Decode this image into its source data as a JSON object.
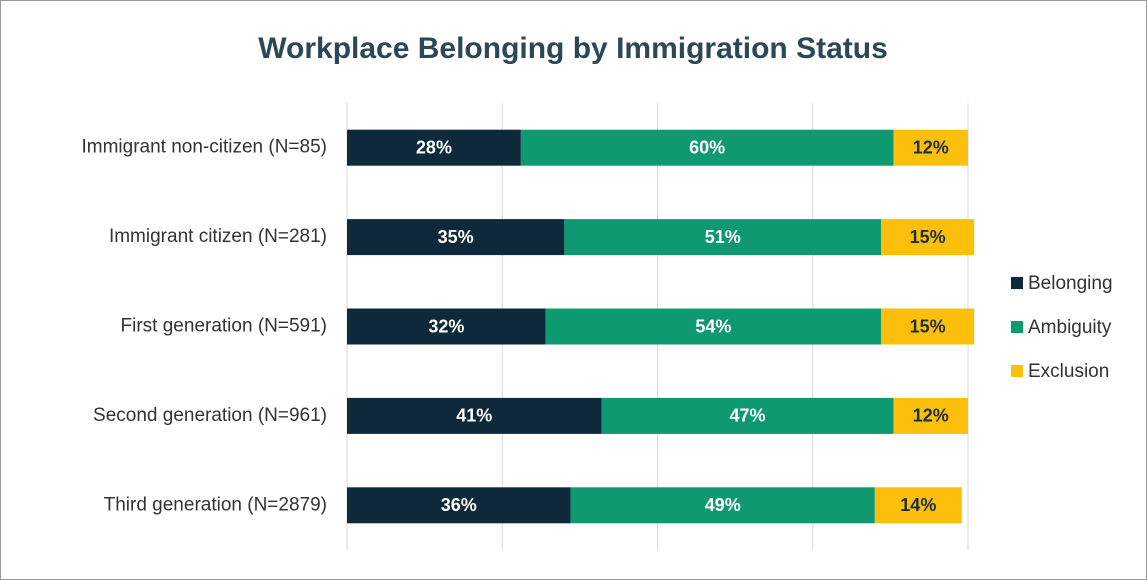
{
  "chart_data": {
    "type": "stacked_barh",
    "title": "Workplace Belonging by Immigration Status",
    "categories": [
      "Immigrant non-citizen (N=85)",
      "Immigrant citizen (N=281)",
      "First generation (N=591)",
      "Second generation (N=961)",
      "Third generation (N=2879)"
    ],
    "series": [
      {
        "name": "Belonging",
        "color": "#0e2a3a",
        "values": [
          28,
          35,
          32,
          41,
          36
        ],
        "value_labels": [
          "28%",
          "35%",
          "32%",
          "41%",
          "36%"
        ]
      },
      {
        "name": "Ambiguity",
        "color": "#0f9970",
        "values": [
          60,
          51,
          54,
          47,
          49
        ],
        "value_labels": [
          "60%",
          "51%",
          "54%",
          "47%",
          "49%"
        ]
      },
      {
        "name": "Exclusion",
        "color": "#fbbf0c",
        "values": [
          12,
          15,
          15,
          12,
          14
        ],
        "value_labels": [
          "12%",
          "15%",
          "15%",
          "12%",
          "14%"
        ]
      }
    ],
    "xlim": [
      0,
      100
    ],
    "xticks": [
      0,
      25,
      50,
      75,
      100
    ],
    "grid": true,
    "legend": "right"
  }
}
